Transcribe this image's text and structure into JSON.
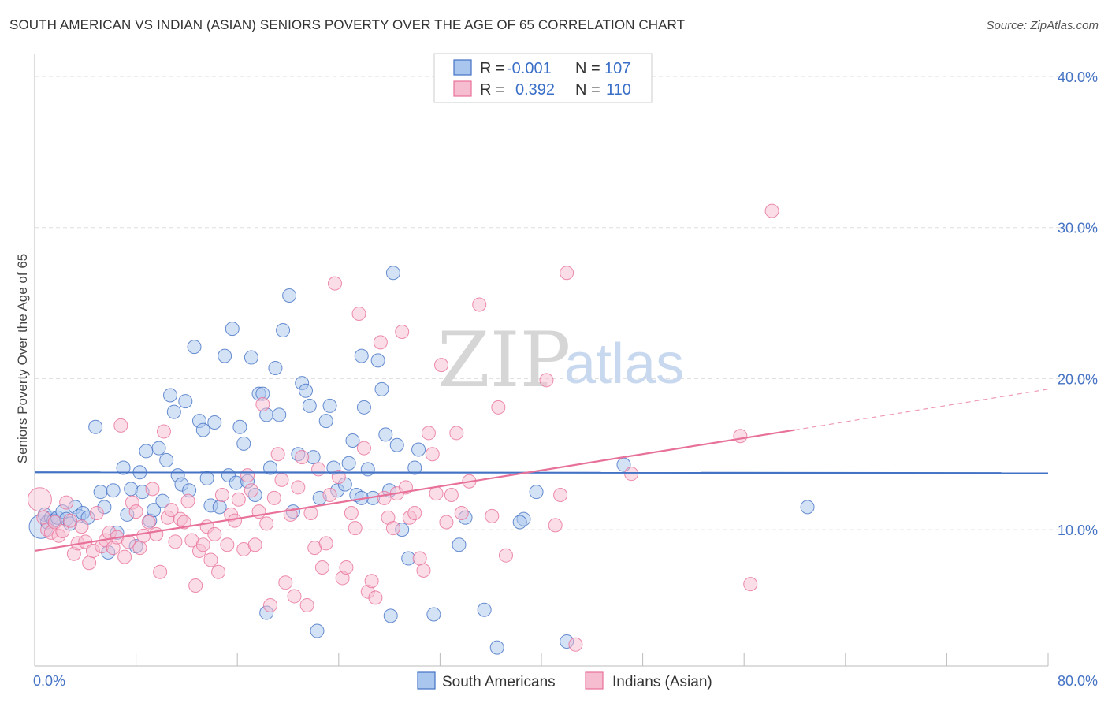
{
  "title": "SOUTH AMERICAN VS INDIAN (ASIAN) SENIORS POVERTY OVER THE AGE OF 65 CORRELATION CHART",
  "source": "Source: ZipAtlas.com",
  "watermark": {
    "zip": "ZIP",
    "atlas": "atlas"
  },
  "colors": {
    "blue": "#4472c4",
    "blue_fill": "#a9c6ee",
    "pink": "#e8719a",
    "pink_fill": "#f6bcd0",
    "grid": "#dddddd"
  },
  "legend": [
    {
      "r_label": "R =",
      "r_value": "-0.001",
      "n_label": "N =",
      "n_value": "107"
    },
    {
      "r_label": "R =",
      "r_value": "0.392",
      "n_label": "N =",
      "n_value": "110"
    }
  ],
  "chart_data": {
    "type": "scatter",
    "x_tick_labels": [
      "0.0%",
      "80.0%"
    ],
    "y_tick_labels": [
      "10.0%",
      "20.0%",
      "30.0%",
      "40.0%"
    ],
    "ylabel": "Seniors Poverty Over the Age of 65",
    "xlim": [
      0,
      80
    ],
    "ylim": [
      0,
      42
    ],
    "grid": true,
    "legend_placement": "bottom",
    "series": [
      {
        "name": "South Americans",
        "color": "#4472c4",
        "trend": {
          "x": [
            0,
            80
          ],
          "y": [
            13.8,
            13.75
          ]
        },
        "points": [
          [
            0.5,
            10.2
          ],
          [
            0.8,
            11
          ],
          [
            1,
            10.5
          ],
          [
            1.3,
            10.8
          ],
          [
            1.5,
            10.6
          ],
          [
            1.8,
            10.8
          ],
          [
            2.2,
            11.2
          ],
          [
            2.5,
            10.7
          ],
          [
            2.8,
            10.4
          ],
          [
            3.2,
            11.5
          ],
          [
            3.5,
            10.9
          ],
          [
            3.8,
            11.1
          ],
          [
            4.2,
            10.8
          ],
          [
            4.8,
            16.8
          ],
          [
            5.2,
            12.5
          ],
          [
            5.5,
            11.5
          ],
          [
            5.8,
            8.5
          ],
          [
            6.2,
            12.6
          ],
          [
            6.5,
            9.8
          ],
          [
            7,
            14.1
          ],
          [
            7.3,
            11
          ],
          [
            7.6,
            12.7
          ],
          [
            8,
            8.9
          ],
          [
            8.3,
            13.8
          ],
          [
            8.5,
            12.5
          ],
          [
            8.8,
            15.2
          ],
          [
            9.1,
            10.6
          ],
          [
            9.4,
            11.3
          ],
          [
            9.8,
            15.4
          ],
          [
            10.1,
            11.9
          ],
          [
            10.4,
            14.6
          ],
          [
            10.7,
            18.9
          ],
          [
            11,
            17.8
          ],
          [
            11.3,
            13.6
          ],
          [
            11.6,
            13
          ],
          [
            11.9,
            18.5
          ],
          [
            12.2,
            12.6
          ],
          [
            12.6,
            22.1
          ],
          [
            13,
            17.2
          ],
          [
            13.3,
            16.6
          ],
          [
            13.6,
            13.4
          ],
          [
            13.9,
            11.6
          ],
          [
            14.2,
            17.1
          ],
          [
            14.6,
            11.5
          ],
          [
            15,
            21.5
          ],
          [
            15.3,
            13.6
          ],
          [
            15.6,
            23.3
          ],
          [
            15.9,
            13.1
          ],
          [
            16.2,
            16.8
          ],
          [
            16.5,
            15.7
          ],
          [
            16.8,
            13.2
          ],
          [
            17.1,
            21.4
          ],
          [
            17.4,
            12.3
          ],
          [
            17.7,
            19
          ],
          [
            18,
            19
          ],
          [
            18.3,
            17.6
          ],
          [
            18.6,
            14.1
          ],
          [
            19,
            20.7
          ],
          [
            19.3,
            17.6
          ],
          [
            19.6,
            23.2
          ],
          [
            20.1,
            25.5
          ],
          [
            20.4,
            11.2
          ],
          [
            20.8,
            15
          ],
          [
            21.1,
            19.7
          ],
          [
            21.4,
            19.2
          ],
          [
            21.7,
            18.2
          ],
          [
            22,
            14.8
          ],
          [
            22.5,
            12.1
          ],
          [
            23,
            17.2
          ],
          [
            23.3,
            18.2
          ],
          [
            23.6,
            14.1
          ],
          [
            23.9,
            12.6
          ],
          [
            24.5,
            13
          ],
          [
            24.8,
            14.4
          ],
          [
            25.1,
            15.9
          ],
          [
            25.4,
            12.3
          ],
          [
            25.8,
            21.5
          ],
          [
            26,
            18.1
          ],
          [
            26.3,
            14
          ],
          [
            26.7,
            12.1
          ],
          [
            27.1,
            21.2
          ],
          [
            27.4,
            19.3
          ],
          [
            27.7,
            16.3
          ],
          [
            28,
            12.6
          ],
          [
            28.3,
            27
          ],
          [
            28.6,
            15.6
          ],
          [
            29,
            10
          ],
          [
            29.5,
            8.1
          ],
          [
            30,
            14.1
          ],
          [
            30.3,
            15.3
          ],
          [
            31.5,
            4.4
          ],
          [
            22.3,
            3.3
          ],
          [
            28.1,
            4.3
          ],
          [
            33.5,
            9
          ],
          [
            34,
            10.8
          ],
          [
            35.5,
            4.7
          ],
          [
            36.5,
            2.2
          ],
          [
            38.6,
            10.7
          ],
          [
            38.3,
            10.5
          ],
          [
            39.6,
            12.5
          ],
          [
            42,
            2.6
          ],
          [
            46.5,
            14.3
          ],
          [
            61,
            11.5
          ],
          [
            25.8,
            12.1
          ],
          [
            18.3,
            4.5
          ]
        ]
      },
      {
        "name": "Indians (Asian)",
        "color": "#e8719a",
        "trend": {
          "x": [
            0,
            60
          ],
          "y": [
            8.6,
            16.6
          ]
        },
        "trend_ext": {
          "x": [
            60,
            80
          ],
          "y": [
            16.6,
            19.3
          ]
        },
        "points": [
          [
            0.4,
            12
          ],
          [
            0.7,
            10.8
          ],
          [
            1,
            10
          ],
          [
            1.3,
            9.8
          ],
          [
            1.6,
            10.5
          ],
          [
            1.9,
            9.6
          ],
          [
            2.2,
            9.9
          ],
          [
            2.5,
            11.8
          ],
          [
            2.8,
            10.6
          ],
          [
            3.1,
            8.4
          ],
          [
            3.4,
            9.1
          ],
          [
            3.7,
            10.2
          ],
          [
            4,
            9.2
          ],
          [
            4.3,
            7.8
          ],
          [
            4.6,
            8.6
          ],
          [
            4.9,
            11.1
          ],
          [
            5.3,
            8.9
          ],
          [
            5.6,
            9.3
          ],
          [
            5.9,
            9.8
          ],
          [
            6.2,
            8.8
          ],
          [
            6.5,
            9.5
          ],
          [
            6.8,
            16.9
          ],
          [
            7.1,
            8.2
          ],
          [
            7.4,
            9.2
          ],
          [
            7.7,
            11.8
          ],
          [
            8,
            11.2
          ],
          [
            8.3,
            8.8
          ],
          [
            8.6,
            9.6
          ],
          [
            9,
            10.5
          ],
          [
            9.3,
            12.7
          ],
          [
            9.6,
            9.7
          ],
          [
            9.9,
            7.2
          ],
          [
            10.2,
            16.5
          ],
          [
            10.5,
            10.8
          ],
          [
            10.8,
            11.3
          ],
          [
            11.1,
            9.2
          ],
          [
            11.5,
            10.7
          ],
          [
            11.8,
            10.5
          ],
          [
            12.1,
            11.9
          ],
          [
            12.4,
            9.3
          ],
          [
            12.7,
            6.3
          ],
          [
            13,
            8.6
          ],
          [
            13.3,
            9
          ],
          [
            13.6,
            10.2
          ],
          [
            13.9,
            8
          ],
          [
            14.2,
            9.7
          ],
          [
            14.5,
            7.2
          ],
          [
            14.8,
            12.3
          ],
          [
            15.2,
            9
          ],
          [
            15.5,
            11
          ],
          [
            15.8,
            10.6
          ],
          [
            16.1,
            12
          ],
          [
            16.5,
            8.7
          ],
          [
            16.8,
            13.6
          ],
          [
            17.1,
            12.6
          ],
          [
            17.4,
            9
          ],
          [
            17.7,
            11.2
          ],
          [
            18,
            18.3
          ],
          [
            18.3,
            10.4
          ],
          [
            18.6,
            5
          ],
          [
            18.9,
            12.1
          ],
          [
            19.2,
            15
          ],
          [
            19.5,
            13.3
          ],
          [
            19.8,
            6.5
          ],
          [
            20.2,
            11
          ],
          [
            20.5,
            5.6
          ],
          [
            20.8,
            12.8
          ],
          [
            21.1,
            14.8
          ],
          [
            21.5,
            5
          ],
          [
            21.8,
            11.1
          ],
          [
            22.1,
            8.8
          ],
          [
            22.4,
            14
          ],
          [
            22.7,
            7.5
          ],
          [
            23,
            9.1
          ],
          [
            23.3,
            12.3
          ],
          [
            23.7,
            26.3
          ],
          [
            24,
            13.5
          ],
          [
            24.3,
            6.8
          ],
          [
            24.6,
            7.5
          ],
          [
            25,
            11.1
          ],
          [
            25.3,
            10.1
          ],
          [
            25.6,
            24.3
          ],
          [
            26,
            15.4
          ],
          [
            26.3,
            5.9
          ],
          [
            26.6,
            6.6
          ],
          [
            26.9,
            5.5
          ],
          [
            27.3,
            22.4
          ],
          [
            27.6,
            12.1
          ],
          [
            27.9,
            10.8
          ],
          [
            28.3,
            10.1
          ],
          [
            28.6,
            12.4
          ],
          [
            29,
            23.1
          ],
          [
            29.3,
            12.8
          ],
          [
            29.6,
            10.8
          ],
          [
            30,
            11.1
          ],
          [
            30.4,
            8.1
          ],
          [
            30.7,
            7.3
          ],
          [
            31.1,
            16.4
          ],
          [
            31.4,
            15
          ],
          [
            31.7,
            12.4
          ],
          [
            32.1,
            20.9
          ],
          [
            32.5,
            10.5
          ],
          [
            32.9,
            12.3
          ],
          [
            33.3,
            16.4
          ],
          [
            33.7,
            11.1
          ],
          [
            34.3,
            13.2
          ],
          [
            35.1,
            24.9
          ],
          [
            36.1,
            10.9
          ],
          [
            36.6,
            18.1
          ],
          [
            37.2,
            8.3
          ],
          [
            40.4,
            19.9
          ],
          [
            41.5,
            12.3
          ],
          [
            42,
            27
          ],
          [
            47.1,
            13.7
          ],
          [
            55.7,
            16.2
          ],
          [
            58.2,
            31.1
          ],
          [
            41.1,
            10.3
          ],
          [
            56.5,
            6.4
          ],
          [
            42.7,
            2.4
          ]
        ]
      }
    ]
  },
  "bottom_legend": [
    "South Americans",
    "Indians (Asian)"
  ]
}
